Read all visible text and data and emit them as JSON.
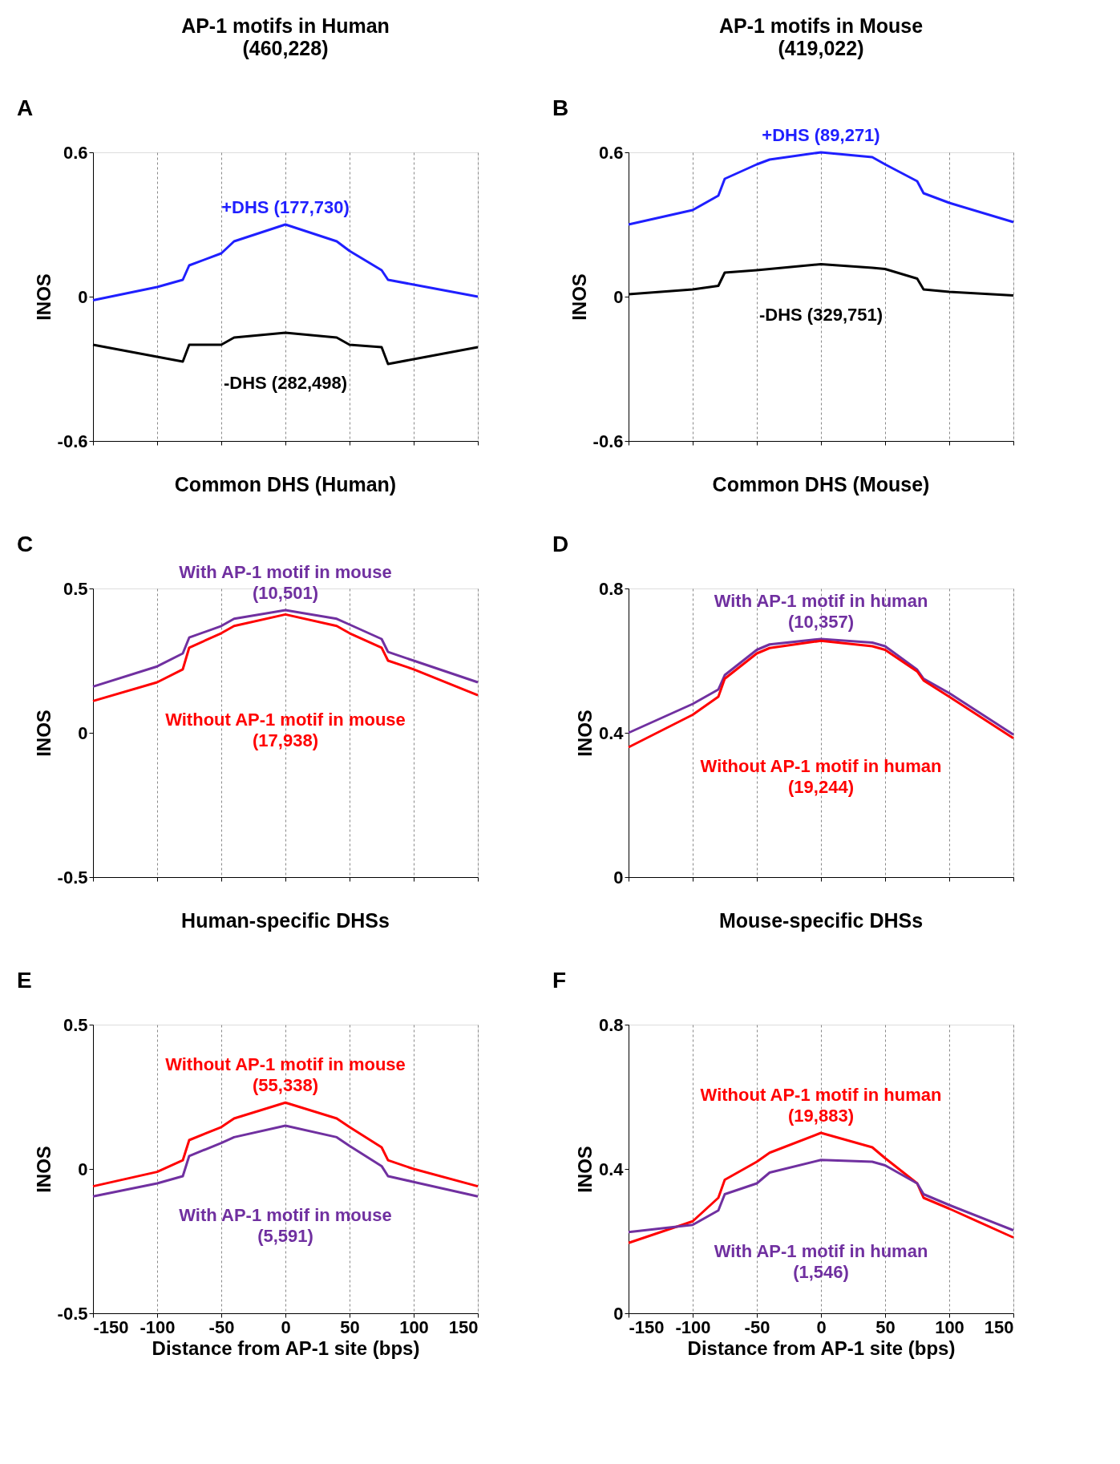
{
  "chart_data": [
    {
      "type": "line",
      "title": "AP-1 motifs in Human",
      "subtitle": "(460,228)",
      "ylabel": "INOS",
      "annotations": [
        "A"
      ],
      "x": [
        -150,
        -100,
        -80,
        -75,
        -50,
        -40,
        0,
        40,
        50,
        75,
        80,
        100,
        150
      ],
      "xlim": [
        -150,
        150
      ],
      "xticks": [
        -150,
        -100,
        -50,
        0,
        50,
        100,
        150
      ],
      "ylim": [
        -0.6,
        0.6
      ],
      "yticks": [
        -0.6,
        0,
        0.6
      ],
      "grid": "x",
      "tick_labels": "y",
      "series": [
        {
          "name": "+DHS (177,730)",
          "color": "#1f1fff",
          "values": [
            -0.015,
            0.04,
            0.07,
            0.13,
            0.18,
            0.23,
            0.3,
            0.23,
            0.19,
            0.11,
            0.07,
            0.05,
            0.0
          ]
        },
        {
          "name": "-DHS (282,498)",
          "color": "#000000",
          "values": [
            -0.2,
            -0.25,
            -0.27,
            -0.2,
            -0.2,
            -0.17,
            -0.15,
            -0.17,
            -0.2,
            -0.21,
            -0.28,
            -0.26,
            -0.21
          ]
        }
      ]
    },
    {
      "type": "line",
      "title": "AP-1 motifs in Mouse",
      "subtitle": "(419,022)",
      "ylabel": "INOS",
      "annotations": [
        "B"
      ],
      "x": [
        -150,
        -100,
        -80,
        -75,
        -50,
        -40,
        0,
        40,
        50,
        75,
        80,
        100,
        150
      ],
      "xlim": [
        -150,
        150
      ],
      "xticks": [
        -150,
        -100,
        -50,
        0,
        50,
        100,
        150
      ],
      "ylim": [
        -0.6,
        0.6
      ],
      "yticks": [
        -0.6,
        0,
        0.6
      ],
      "grid": "x",
      "tick_labels": "y",
      "series": [
        {
          "name": "+DHS (89,271)",
          "color": "#1f1fff",
          "values": [
            0.3,
            0.36,
            0.42,
            0.49,
            0.55,
            0.57,
            0.6,
            0.58,
            0.55,
            0.48,
            0.43,
            0.39,
            0.31
          ]
        },
        {
          "name": "-DHS (329,751)",
          "color": "#000000",
          "values": [
            0.01,
            0.03,
            0.045,
            0.1,
            0.11,
            0.115,
            0.135,
            0.12,
            0.115,
            0.075,
            0.03,
            0.02,
            0.005
          ]
        }
      ]
    },
    {
      "type": "line",
      "title": "Common DHS (Human)",
      "ylabel": "INOS",
      "annotations": [
        "C"
      ],
      "x": [
        -150,
        -100,
        -80,
        -75,
        -50,
        -40,
        0,
        40,
        50,
        75,
        80,
        100,
        150
      ],
      "xlim": [
        -150,
        150
      ],
      "xticks": [
        -150,
        -100,
        -50,
        0,
        50,
        100,
        150
      ],
      "ylim": [
        -0.5,
        0.5
      ],
      "yticks": [
        -0.5,
        0,
        0.5
      ],
      "grid": "x",
      "tick_labels": "y",
      "series": [
        {
          "name": "With AP-1 motif in mouse (10,501)",
          "color": "#7030a0",
          "values": [
            0.16,
            0.23,
            0.275,
            0.33,
            0.37,
            0.395,
            0.425,
            0.395,
            0.375,
            0.325,
            0.28,
            0.25,
            0.175
          ]
        },
        {
          "name": "Without AP-1 motif in mouse (17,938)",
          "color": "#ff0000",
          "values": [
            0.11,
            0.175,
            0.22,
            0.295,
            0.345,
            0.37,
            0.41,
            0.37,
            0.345,
            0.295,
            0.25,
            0.22,
            0.13
          ]
        }
      ]
    },
    {
      "type": "line",
      "title": "Common DHS (Mouse)",
      "ylabel": "INOS",
      "annotations": [
        "D"
      ],
      "x": [
        -150,
        -100,
        -80,
        -75,
        -50,
        -40,
        0,
        40,
        50,
        75,
        80,
        100,
        150
      ],
      "xlim": [
        -150,
        150
      ],
      "xticks": [
        -150,
        -100,
        -50,
        0,
        50,
        100,
        150
      ],
      "ylim": [
        0,
        0.8
      ],
      "yticks": [
        0,
        0.4,
        0.8
      ],
      "grid": "x",
      "tick_labels": "y",
      "series": [
        {
          "name": "With AP-1 motif in human (10,357)",
          "color": "#7030a0",
          "values": [
            0.4,
            0.48,
            0.52,
            0.56,
            0.63,
            0.645,
            0.66,
            0.65,
            0.64,
            0.575,
            0.55,
            0.51,
            0.395
          ]
        },
        {
          "name": "Without AP-1 motif in human (19,244)",
          "color": "#ff0000",
          "values": [
            0.36,
            0.45,
            0.5,
            0.55,
            0.62,
            0.635,
            0.655,
            0.64,
            0.63,
            0.57,
            0.545,
            0.5,
            0.385
          ]
        }
      ]
    },
    {
      "type": "line",
      "title": "Human-specific DHSs",
      "ylabel": "INOS",
      "xlabel": "Distance from AP-1 site (bps)",
      "annotations": [
        "E"
      ],
      "x": [
        -150,
        -100,
        -80,
        -75,
        -50,
        -40,
        0,
        40,
        50,
        75,
        80,
        100,
        150
      ],
      "xlim": [
        -150,
        150
      ],
      "xticks": [
        -150,
        -100,
        -50,
        0,
        50,
        100,
        150
      ],
      "ylim": [
        -0.5,
        0.5
      ],
      "yticks": [
        -0.5,
        0,
        0.5
      ],
      "grid": "x",
      "series": [
        {
          "name": "Without AP-1 motif in mouse (55,338)",
          "color": "#ff0000",
          "values": [
            -0.06,
            -0.01,
            0.03,
            0.1,
            0.145,
            0.175,
            0.23,
            0.175,
            0.145,
            0.075,
            0.03,
            0.0,
            -0.06
          ]
        },
        {
          "name": "With AP-1 motif in mouse (5,591)",
          "color": "#7030a0",
          "values": [
            -0.095,
            -0.05,
            -0.025,
            0.045,
            0.09,
            0.11,
            0.15,
            0.11,
            0.08,
            0.01,
            -0.025,
            -0.045,
            -0.095
          ]
        }
      ]
    },
    {
      "type": "line",
      "title": "Mouse-specific DHSs",
      "ylabel": "INOS",
      "xlabel": "Distance from AP-1 site (bps)",
      "annotations": [
        "F"
      ],
      "x": [
        -150,
        -100,
        -80,
        -75,
        -50,
        -40,
        0,
        40,
        50,
        75,
        80,
        100,
        150
      ],
      "xlim": [
        -150,
        150
      ],
      "xticks": [
        -150,
        -100,
        -50,
        0,
        50,
        100,
        150
      ],
      "ylim": [
        0,
        0.8
      ],
      "yticks": [
        0,
        0.4,
        0.8
      ],
      "grid": "x",
      "series": [
        {
          "name": "Without AP-1 motif in human (19,883)",
          "color": "#ff0000",
          "values": [
            0.195,
            0.255,
            0.32,
            0.37,
            0.42,
            0.445,
            0.5,
            0.46,
            0.43,
            0.36,
            0.32,
            0.29,
            0.21
          ]
        },
        {
          "name": "With AP-1 motif in human (1,546)",
          "color": "#7030a0",
          "values": [
            0.225,
            0.245,
            0.285,
            0.33,
            0.36,
            0.39,
            0.425,
            0.42,
            0.41,
            0.36,
            0.33,
            0.3,
            0.23
          ]
        }
      ]
    }
  ]
}
